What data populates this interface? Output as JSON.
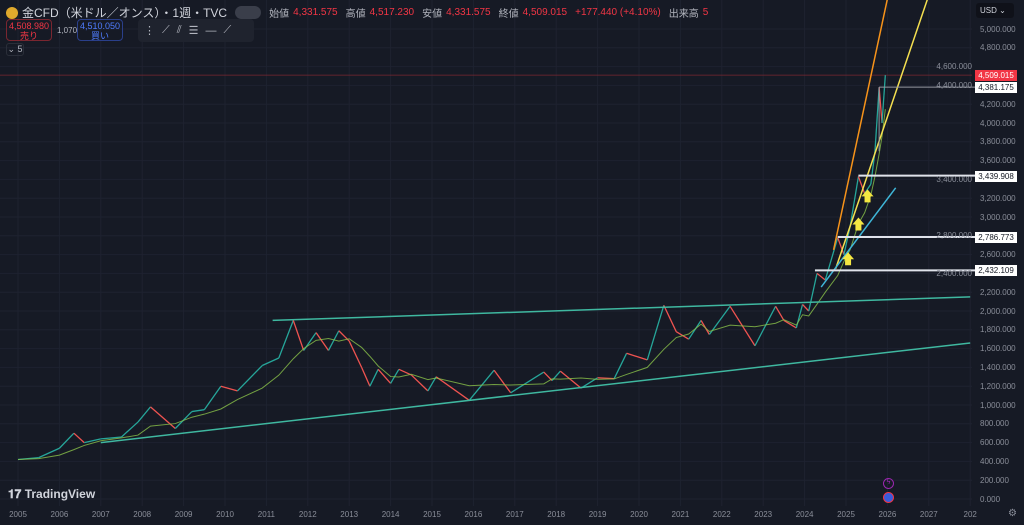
{
  "header": {
    "title": "金CFD（米ドル／オンス）・1週・TVC",
    "open_label": "始値",
    "open": "4,331.575",
    "high_label": "高値",
    "high": "4,517.230",
    "low_label": "安値",
    "low": "4,331.575",
    "close_label": "終値",
    "close": "4,509.015",
    "change": "+177.440 (+4.10%)",
    "volume_label": "出来高",
    "volume": "5"
  },
  "trade": {
    "sell_price": "4,508.980",
    "sell_label": "売り",
    "spread": "1,070",
    "buy_price": "4,510.050",
    "buy_label": "買い"
  },
  "indicator_toggle": "5",
  "currency": "USD",
  "brand": "TradingView",
  "price_axis": [
    "5,000.000",
    "4,800.000",
    "4,600.000",
    "4,400.000",
    "4,200.000",
    "4,000.000",
    "3,800.000",
    "3,600.000",
    "3,400.000",
    "3,200.000",
    "3,000.000",
    "2,800.000",
    "2,600.000",
    "2,400.000",
    "2,200.000",
    "2,000.000",
    "1,800.000",
    "1,600.000",
    "1,400.000",
    "1,200.000",
    "1,000.000",
    "800.000",
    "600.000",
    "400.000",
    "200.000",
    "0.000"
  ],
  "tags": {
    "last": "4,509.015",
    "h1": "4,381.175",
    "h2": "3,439.908",
    "h3": "2,786.773",
    "h4": "2,432.109"
  },
  "time_axis": [
    "2005",
    "2006",
    "2007",
    "2008",
    "2009",
    "2010",
    "2011",
    "2012",
    "2013",
    "2014",
    "2015",
    "2016",
    "2017",
    "2018",
    "2019",
    "2020",
    "2021",
    "2022",
    "2023",
    "2024",
    "2025",
    "2026",
    "2027",
    "202"
  ],
  "colors": {
    "up": "#26a69a",
    "down": "#ef5350",
    "ma": "#8bc34a",
    "trend": "#3fb8a0",
    "orange": "#f7931a",
    "yellow": "#f5e050",
    "cyan": "#3fb6d8",
    "last": "#f23645"
  },
  "chart_data": {
    "type": "line",
    "price": [
      [
        2005.0,
        420
      ],
      [
        2005.5,
        440
      ],
      [
        2006.0,
        540
      ],
      [
        2006.35,
        700
      ],
      [
        2006.6,
        600
      ],
      [
        2007.0,
        640
      ],
      [
        2007.5,
        660
      ],
      [
        2007.9,
        820
      ],
      [
        2008.2,
        980
      ],
      [
        2008.8,
        750
      ],
      [
        2009.2,
        930
      ],
      [
        2009.5,
        950
      ],
      [
        2009.9,
        1200
      ],
      [
        2010.3,
        1150
      ],
      [
        2010.9,
        1420
      ],
      [
        2011.3,
        1500
      ],
      [
        2011.65,
        1900
      ],
      [
        2011.9,
        1580
      ],
      [
        2012.2,
        1770
      ],
      [
        2012.5,
        1580
      ],
      [
        2012.75,
        1790
      ],
      [
        2013.0,
        1680
      ],
      [
        2013.3,
        1400
      ],
      [
        2013.5,
        1200
      ],
      [
        2013.7,
        1380
      ],
      [
        2014.0,
        1230
      ],
      [
        2014.2,
        1380
      ],
      [
        2014.5,
        1320
      ],
      [
        2014.9,
        1150
      ],
      [
        2015.1,
        1300
      ],
      [
        2015.9,
        1050
      ],
      [
        2016.5,
        1370
      ],
      [
        2016.9,
        1130
      ],
      [
        2017.7,
        1350
      ],
      [
        2017.9,
        1260
      ],
      [
        2018.1,
        1360
      ],
      [
        2018.6,
        1180
      ],
      [
        2019.0,
        1290
      ],
      [
        2019.4,
        1280
      ],
      [
        2019.7,
        1550
      ],
      [
        2020.2,
        1480
      ],
      [
        2020.6,
        2060
      ],
      [
        2020.9,
        1780
      ],
      [
        2021.2,
        1700
      ],
      [
        2021.5,
        1900
      ],
      [
        2021.7,
        1750
      ],
      [
        2022.2,
        2050
      ],
      [
        2022.8,
        1630
      ],
      [
        2023.3,
        2050
      ],
      [
        2023.5,
        1900
      ],
      [
        2023.8,
        1820
      ],
      [
        2023.95,
        2070
      ],
      [
        2024.1,
        2000
      ],
      [
        2024.3,
        2400
      ],
      [
        2024.5,
        2330
      ],
      [
        2024.8,
        2780
      ],
      [
        2024.95,
        2600
      ],
      [
        2025.1,
        2900
      ],
      [
        2025.3,
        3430
      ],
      [
        2025.45,
        3250
      ],
      [
        2025.6,
        3350
      ],
      [
        2025.7,
        3700
      ],
      [
        2025.8,
        4380
      ],
      [
        2025.87,
        4000
      ],
      [
        2025.95,
        4509
      ]
    ],
    "ylim": [
      0,
      5100
    ],
    "xlim": [
      2004.6,
      2028.3
    ],
    "hlines": [
      {
        "value": 2432.109,
        "from": 2024.25
      },
      {
        "value": 2786.773,
        "from": 2024.8
      },
      {
        "value": 3439.908,
        "from": 2025.3
      },
      {
        "value": 4381.175,
        "from": 2025.8
      }
    ],
    "trendlines": [
      {
        "color": "trend",
        "p": [
          [
            2011.15,
            1900
          ],
          [
            2028.0,
            2150
          ]
        ]
      },
      {
        "color": "trend",
        "p": [
          [
            2007.0,
            600
          ],
          [
            2028.0,
            1660
          ]
        ]
      },
      {
        "color": "orange",
        "p": [
          [
            2024.7,
            2650
          ],
          [
            2026.0,
            5320
          ]
        ]
      },
      {
        "color": "yellow",
        "p": [
          [
            2024.75,
            2450
          ],
          [
            2026.97,
            5320
          ]
        ]
      },
      {
        "color": "cyan",
        "p": [
          [
            2024.4,
            2255
          ],
          [
            2026.2,
            3310
          ]
        ]
      }
    ],
    "arrows": [
      [
        2025.05,
        2550
      ],
      [
        2025.3,
        2920
      ],
      [
        2025.52,
        3220
      ]
    ]
  }
}
